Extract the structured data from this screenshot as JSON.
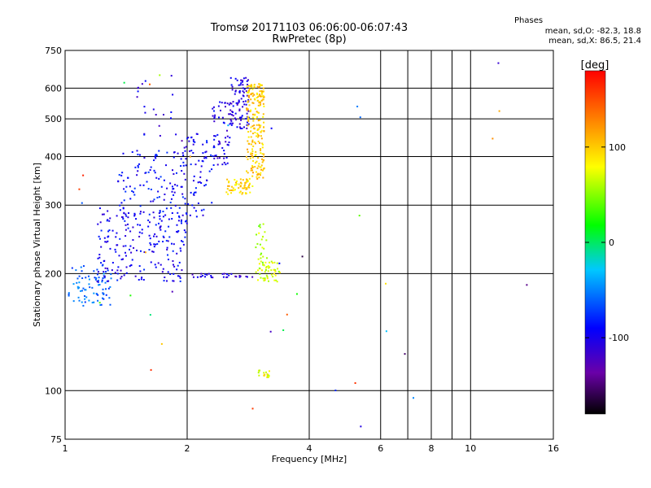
{
  "header": {
    "title_line1": "Tromsø 20171103 06:06:00-06:07:43",
    "title_line2": "RwPretec (8p)",
    "phases_title": "Phases",
    "phases_o": "mean, sd,O: -82.3, 18.8",
    "phases_x": "mean, sd,X: 86.5, 21.4"
  },
  "chart_data": {
    "type": "scatter",
    "xlabel": "Frequency [MHz]",
    "ylabel": "Stationary phase Virtual Height [km]",
    "x_scale": "log",
    "y_scale": "log",
    "xlim": [
      1,
      16
    ],
    "ylim": [
      75,
      750
    ],
    "x_ticks": [
      1,
      2,
      4,
      6,
      8,
      10,
      16
    ],
    "x_tick_labels": [
      "1",
      "2",
      "4",
      "6",
      "8",
      "10",
      "16"
    ],
    "x_minor_gridlines": [
      7,
      9
    ],
    "y_ticks": [
      75,
      100,
      200,
      300,
      400,
      500,
      600,
      750
    ],
    "y_tick_labels": [
      "75",
      "100",
      "200",
      "300",
      "400",
      "500",
      "600",
      "750"
    ],
    "grid": true,
    "colorbar": {
      "label": "[deg]",
      "min": -180,
      "max": 180,
      "ticks": [
        -100,
        0,
        100
      ],
      "tick_labels": [
        "-100",
        "0",
        "100"
      ],
      "colors": [
        "#000000",
        "#6a00a8",
        "#0000ff",
        "#00c8ff",
        "#00ff00",
        "#ffff00",
        "#ff8000",
        "#ff0000"
      ]
    },
    "clusters": [
      {
        "name": "F-low trace",
        "f_range": [
          1.02,
          1.3
        ],
        "h_range": [
          165,
          210
        ],
        "phase": -60,
        "count": 80
      },
      {
        "name": "F trace main",
        "f_range": [
          1.2,
          2.0
        ],
        "h_range": [
          190,
          300
        ],
        "phase": -95,
        "count": 220
      },
      {
        "name": "F upper band",
        "f_range": [
          1.35,
          2.0
        ],
        "h_range": [
          280,
          420
        ],
        "phase": -90,
        "count": 110
      },
      {
        "name": "F upper sky",
        "f_range": [
          1.5,
          1.9
        ],
        "h_range": [
          450,
          650
        ],
        "phase": -100,
        "count": 20
      },
      {
        "name": "rising trace",
        "f_range": [
          1.95,
          2.3
        ],
        "h_range": [
          280,
          460
        ],
        "phase": -95,
        "count": 70
      },
      {
        "name": "cluster 2.3-2.5",
        "f_range": [
          2.3,
          2.55
        ],
        "h_range": [
          380,
          560
        ],
        "phase": -100,
        "count": 60
      },
      {
        "name": "cluster 2.6-2.9",
        "f_range": [
          2.55,
          2.85
        ],
        "h_range": [
          470,
          640
        ],
        "phase": -105,
        "count": 90
      },
      {
        "name": "X cusp 2.5-2.9",
        "f_range": [
          2.5,
          2.9
        ],
        "h_range": [
          320,
          350
        ],
        "phase": 95,
        "count": 60
      },
      {
        "name": "X trace 2.8-3.1",
        "f_range": [
          2.8,
          3.1
        ],
        "h_range": [
          350,
          620
        ],
        "phase": 100,
        "count": 220
      },
      {
        "name": "X mid 3.0-3.1",
        "f_range": [
          2.95,
          3.15
        ],
        "h_range": [
          210,
          270
        ],
        "phase": 60,
        "count": 25
      },
      {
        "name": "X low 3.0-3.4",
        "f_range": [
          2.95,
          3.4
        ],
        "h_range": [
          190,
          215
        ],
        "phase": 70,
        "count": 50
      },
      {
        "name": "X 110 km",
        "f_range": [
          3.0,
          3.2
        ],
        "h_range": [
          108,
          113
        ],
        "phase": 80,
        "count": 18
      },
      {
        "name": "O 200 km 2.1-2.9",
        "f_range": [
          2.05,
          2.9
        ],
        "h_range": [
          195,
          200
        ],
        "phase": -110,
        "count": 30
      },
      {
        "name": "scattered noise",
        "f_range": [
          1.0,
          16.0
        ],
        "h_range": [
          80,
          700
        ],
        "phase": 0,
        "count": 40
      }
    ]
  }
}
